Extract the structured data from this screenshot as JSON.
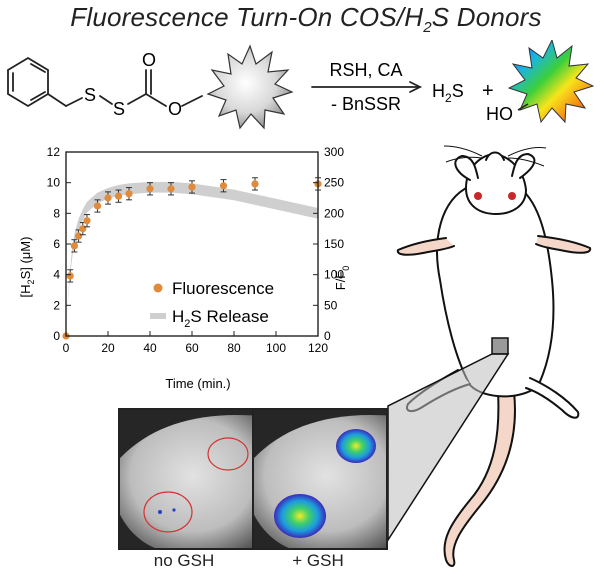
{
  "title": {
    "main": "Fluorescence Turn-On COS/H",
    "sub": "2",
    "tail": "S Donors"
  },
  "reaction": {
    "atom_s1": "S",
    "atom_s2": "S",
    "atom_o_carbonyl": "O",
    "atom_o_ester": "O",
    "reagents": "RSH, CA",
    "byproduct": "- BnSSR",
    "product_h2s": "H",
    "product_h2s_sub": "2",
    "product_h2s_tail": "S",
    "plus": "+",
    "product_ho": "HO"
  },
  "images": {
    "left_label": "no GSH",
    "right_label": "+ GSH"
  },
  "chart_data": {
    "type": "scatter",
    "xlabel": "Time (min.)",
    "ylabel_left": {
      "pre": "[H",
      "sub": "2",
      "post": "S] (μM)"
    },
    "ylabel_right": {
      "pre": "F/F",
      "sub": "0"
    },
    "xlim": [
      0,
      120
    ],
    "ylim_left": [
      0,
      12
    ],
    "ylim_right": [
      0,
      300
    ],
    "x_ticks": [
      0,
      20,
      40,
      60,
      80,
      100,
      120
    ],
    "y_ticks_left": [
      0,
      2,
      4,
      6,
      8,
      10,
      12
    ],
    "y_ticks_right": [
      0,
      50,
      100,
      150,
      200,
      250,
      300
    ],
    "legend": {
      "position": "bottom-right",
      "entries": [
        {
          "label": "Fluorescence"
        },
        {
          "label_pre": "H",
          "label_sub": "2",
          "label_post": "S Release"
        }
      ]
    },
    "colors": {
      "fluorescence": "#e08a3c",
      "release": "#cfcfcf"
    },
    "series": [
      {
        "key": "fluorescence",
        "axis": "right",
        "x": [
          0,
          2,
          4,
          6,
          8,
          10,
          15,
          20,
          25,
          30,
          40,
          50,
          60,
          75,
          90,
          120
        ],
        "y": [
          0,
          98,
          147,
          163,
          175,
          188,
          212,
          225,
          228,
          232,
          240,
          240,
          243,
          245,
          248,
          248
        ],
        "err": [
          0,
          10,
          10,
          10,
          10,
          10,
          10,
          10,
          10,
          10,
          10,
          10,
          10,
          10,
          10,
          10
        ]
      },
      {
        "key": "release",
        "axis": "left",
        "x": [
          0,
          1,
          2,
          3,
          4,
          6,
          8,
          10,
          15,
          20,
          25,
          30,
          40,
          50,
          60,
          70,
          80,
          90,
          100,
          110,
          120
        ],
        "y": [
          0,
          2.5,
          4.2,
          5.5,
          6.3,
          7.3,
          7.9,
          8.4,
          9.0,
          9.3,
          9.5,
          9.6,
          9.7,
          9.7,
          9.6,
          9.4,
          9.2,
          8.9,
          8.6,
          8.3,
          8.0
        ],
        "band": 0.35
      }
    ]
  }
}
